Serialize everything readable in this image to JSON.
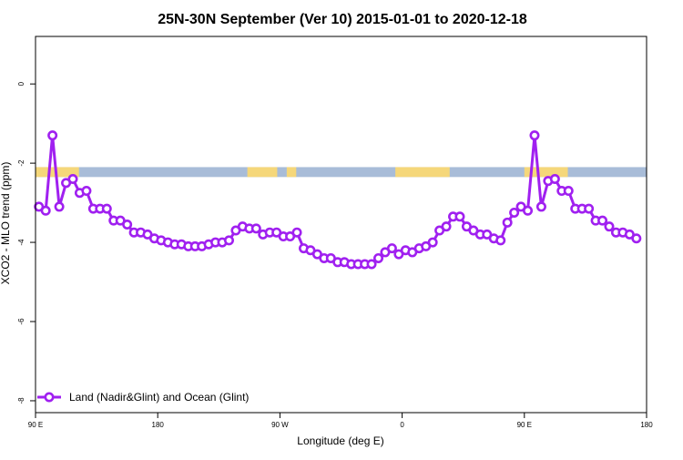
{
  "chart_data": {
    "type": "line",
    "title": "25N-30N September (Ver 10)   2015-01-01 to 2020-12-18",
    "xlabel": "Longitude (deg E)",
    "ylabel": "XCO2 - MLO trend (ppm)",
    "xlim": [
      90,
      540
    ],
    "ylim": [
      -8.3,
      1.2
    ],
    "x_ticks": [
      {
        "value": 90,
        "label": "90 E"
      },
      {
        "value": 180,
        "label": "180"
      },
      {
        "value": 270,
        "label": "90 W"
      },
      {
        "value": 360,
        "label": "0"
      },
      {
        "value": 450,
        "label": "90 E"
      },
      {
        "value": 540,
        "label": "180"
      }
    ],
    "y_ticks": [
      {
        "value": 0,
        "label": "0"
      },
      {
        "value": -2,
        "label": "-2"
      },
      {
        "value": -4,
        "label": "-4"
      },
      {
        "value": -6,
        "label": "-6"
      },
      {
        "value": -8,
        "label": "-8"
      }
    ],
    "surface_band": {
      "y_range": [
        -2.35,
        -2.1
      ],
      "land_color": "#f5d77a",
      "ocean_color": "#a8bcd8",
      "land_segments": [
        [
          90,
          122
        ],
        [
          246,
          268
        ],
        [
          275,
          282
        ],
        [
          355,
          395
        ],
        [
          450,
          482
        ]
      ]
    },
    "series": [
      {
        "name": "Land (Nadir&Glint) and Ocean (Glint)",
        "color": "#a020f0",
        "points": [
          [
            92.5,
            -3.1
          ],
          [
            97.5,
            -3.2
          ],
          [
            102.5,
            -1.3
          ],
          [
            107.5,
            -3.1
          ],
          [
            112.5,
            -2.5
          ],
          [
            117.5,
            -2.4
          ],
          [
            122.5,
            -2.75
          ],
          [
            127.5,
            -2.7
          ],
          [
            132.5,
            -3.15
          ],
          [
            137.5,
            -3.15
          ],
          [
            142.5,
            -3.15
          ],
          [
            147.5,
            -3.45
          ],
          [
            152.5,
            -3.45
          ],
          [
            157.5,
            -3.55
          ],
          [
            162.5,
            -3.75
          ],
          [
            167.5,
            -3.75
          ],
          [
            172.5,
            -3.8
          ],
          [
            177.5,
            -3.9
          ],
          [
            182.5,
            -3.95
          ],
          [
            187.5,
            -4.0
          ],
          [
            192.5,
            -4.05
          ],
          [
            197.5,
            -4.05
          ],
          [
            202.5,
            -4.1
          ],
          [
            207.5,
            -4.1
          ],
          [
            212.5,
            -4.1
          ],
          [
            217.5,
            -4.05
          ],
          [
            222.5,
            -4.0
          ],
          [
            227.5,
            -4.0
          ],
          [
            232.5,
            -3.95
          ],
          [
            237.5,
            -3.7
          ],
          [
            242.5,
            -3.6
          ],
          [
            247.5,
            -3.65
          ],
          [
            252.5,
            -3.65
          ],
          [
            257.5,
            -3.8
          ],
          [
            262.5,
            -3.75
          ],
          [
            267.5,
            -3.75
          ],
          [
            272.5,
            -3.85
          ],
          [
            277.5,
            -3.85
          ],
          [
            282.5,
            -3.75
          ],
          [
            287.5,
            -4.15
          ],
          [
            292.5,
            -4.2
          ],
          [
            297.5,
            -4.3
          ],
          [
            302.5,
            -4.4
          ],
          [
            307.5,
            -4.4
          ],
          [
            312.5,
            -4.5
          ],
          [
            317.5,
            -4.5
          ],
          [
            322.5,
            -4.55
          ],
          [
            327.5,
            -4.55
          ],
          [
            332.5,
            -4.55
          ],
          [
            337.5,
            -4.55
          ],
          [
            342.5,
            -4.4
          ],
          [
            347.5,
            -4.25
          ],
          [
            352.5,
            -4.15
          ],
          [
            357.5,
            -4.3
          ],
          [
            362.5,
            -4.2
          ],
          [
            367.5,
            -4.25
          ],
          [
            372.5,
            -4.15
          ],
          [
            377.5,
            -4.1
          ],
          [
            382.5,
            -4.0
          ],
          [
            387.5,
            -3.7
          ],
          [
            392.5,
            -3.6
          ],
          [
            397.5,
            -3.35
          ],
          [
            402.5,
            -3.35
          ],
          [
            407.5,
            -3.6
          ],
          [
            412.5,
            -3.7
          ],
          [
            417.5,
            -3.8
          ],
          [
            422.5,
            -3.8
          ],
          [
            427.5,
            -3.9
          ],
          [
            432.5,
            -3.95
          ],
          [
            437.5,
            -3.5
          ],
          [
            442.5,
            -3.25
          ],
          [
            447.5,
            -3.1
          ],
          [
            452.5,
            -3.2
          ],
          [
            457.5,
            -1.3
          ],
          [
            462.5,
            -3.1
          ],
          [
            467.5,
            -2.45
          ],
          [
            472.5,
            -2.4
          ],
          [
            477.5,
            -2.7
          ],
          [
            482.5,
            -2.7
          ],
          [
            487.5,
            -3.15
          ],
          [
            492.5,
            -3.15
          ],
          [
            497.5,
            -3.15
          ],
          [
            502.5,
            -3.45
          ],
          [
            507.5,
            -3.45
          ],
          [
            512.5,
            -3.6
          ],
          [
            517.5,
            -3.75
          ],
          [
            522.5,
            -3.75
          ],
          [
            527.5,
            -3.8
          ],
          [
            532.5,
            -3.9
          ]
        ]
      }
    ],
    "legend": {
      "position": "bottom-left"
    },
    "grid": false
  }
}
